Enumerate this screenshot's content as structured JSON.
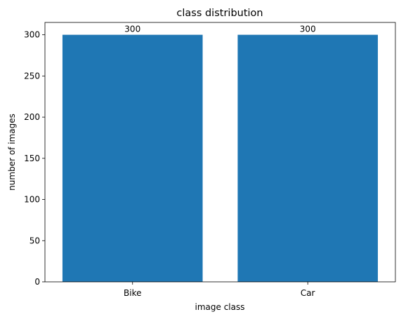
{
  "chart_data": {
    "type": "bar",
    "title": "class distribution",
    "xlabel": "image class",
    "ylabel": "number of images",
    "categories": [
      "Bike",
      "Car"
    ],
    "values": [
      300,
      300
    ],
    "data_labels": [
      "300",
      "300"
    ],
    "ylim": [
      0,
      315
    ],
    "yticks": [
      0,
      50,
      100,
      150,
      200,
      250,
      300
    ],
    "grid": false,
    "legend": "none",
    "bar_color": "#1f77b4"
  }
}
